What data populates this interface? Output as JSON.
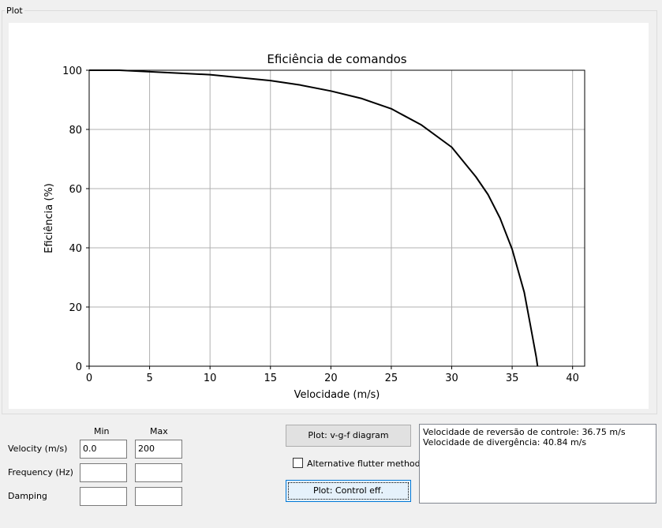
{
  "groupbox": {
    "title": "Plot"
  },
  "chart_data": {
    "type": "line",
    "title": "Eficiência de comandos",
    "xlabel": "Velocidade (m/s)",
    "ylabel": "Eficiência (%)",
    "xlim": [
      0,
      41
    ],
    "ylim": [
      0,
      100
    ],
    "xticks": [
      0,
      5,
      10,
      15,
      20,
      25,
      30,
      35,
      40
    ],
    "yticks": [
      0,
      20,
      40,
      60,
      80,
      100
    ],
    "grid": true,
    "series": [
      {
        "color": "#000000",
        "x": [
          0,
          2.5,
          5,
          7.5,
          10,
          12.5,
          15,
          17.5,
          20,
          22.5,
          25,
          27.5,
          30,
          32,
          33,
          34,
          35,
          36,
          36.5,
          37
        ],
        "y": [
          100,
          100,
          99.5,
          99,
          98.5,
          97.5,
          96.5,
          95,
          93,
          90.5,
          87,
          81.5,
          74,
          64,
          58,
          50,
          39.5,
          25,
          14,
          3
        ]
      },
      {
        "color": "#000000",
        "x": [
          37,
          37.1
        ],
        "y": [
          3,
          0
        ]
      }
    ]
  },
  "controls": {
    "min_header": "Min",
    "max_header": "Max",
    "velocity_label": "Velocity (m/s)",
    "frequency_label": "Frequency (Hz)",
    "damping_label": "Damping",
    "velocity_min": "0.0",
    "velocity_max": "200",
    "frequency_min": "",
    "frequency_max": "",
    "damping_min": "",
    "damping_max": "",
    "vgf_button": "Plot: v-g-f diagram",
    "alt_flutter_label": "Alternative flutter method",
    "control_eff_button": "Plot: Control eff."
  },
  "output": {
    "lines": [
      "Velocidade de reversão de controle: 36.75 m/s",
      "Velocidade de divergência: 40.84 m/s"
    ]
  }
}
